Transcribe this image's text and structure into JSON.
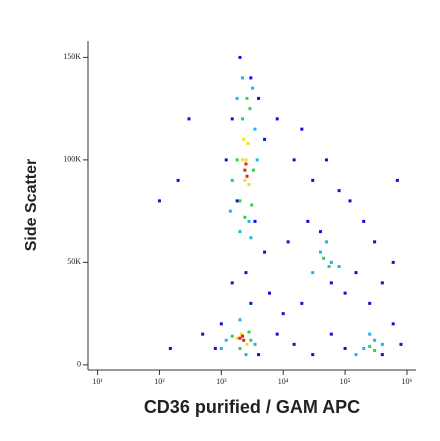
{
  "chart_data": {
    "type": "scatter",
    "x_label": "CD36 purified / GAM APC",
    "y_label": "Side Scatter",
    "x_scale": "log",
    "xlim": [
      7,
      1400000
    ],
    "xticks": [
      {
        "value": 10,
        "label": "10¹"
      },
      {
        "value": 100,
        "label": "10²"
      },
      {
        "value": 1000,
        "label": "10³"
      },
      {
        "value": 10000,
        "label": "10⁴"
      },
      {
        "value": 100000,
        "label": "10⁵"
      },
      {
        "value": 1000000,
        "label": "10⁶"
      }
    ],
    "ylim": [
      -2500,
      158000
    ],
    "yticks": [
      0,
      {
        "value": 50000,
        "label": "50K"
      },
      {
        "value": 100000,
        "label": "100K"
      },
      {
        "value": 150000,
        "label": "150K"
      }
    ],
    "series": [
      {
        "color": "#1010d8",
        "x": [
          2000,
          3000,
          1500,
          4000,
          1800,
          3500,
          1200,
          5000,
          8000,
          15000,
          20000,
          30000,
          50000,
          80000,
          120000,
          200000,
          300000,
          25000,
          40000,
          60000,
          100000,
          150000,
          250000,
          20000,
          10000,
          6000,
          3000,
          1500,
          500,
          800,
          1000,
          4000,
          8000,
          15000,
          30000,
          60000,
          100000,
          400000,
          600000,
          800000,
          600000,
          400000,
          150,
          300,
          200,
          100,
          2500,
          700000,
          12000,
          5000
        ],
        "values": [
          150000,
          140000,
          120000,
          130000,
          80000,
          70000,
          100000,
          110000,
          120000,
          100000,
          115000,
          90000,
          100000,
          85000,
          80000,
          70000,
          60000,
          70000,
          65000,
          40000,
          35000,
          45000,
          30000,
          30000,
          25000,
          35000,
          30000,
          40000,
          15000,
          8000,
          20000,
          5000,
          15000,
          10000,
          5000,
          15000,
          8000,
          5000,
          20000,
          10000,
          50000,
          40000,
          8000,
          120000,
          90000,
          80000,
          45000,
          90000,
          60000,
          55000
        ]
      },
      {
        "color": "#18b8e8",
        "x": [
          1800,
          3200,
          2000,
          3000,
          1500,
          3800,
          1400,
          3500,
          2200,
          2800,
          1200,
          3500,
          2000,
          2500,
          1000,
          40000,
          60000,
          30000,
          80000,
          50000,
          200000,
          300000,
          150000,
          400000,
          250000
        ],
        "values": [
          130000,
          135000,
          65000,
          62000,
          90000,
          100000,
          75000,
          115000,
          140000,
          70000,
          12000,
          10000,
          22000,
          5000,
          8000,
          55000,
          50000,
          45000,
          48000,
          60000,
          8000,
          12000,
          5000,
          10000,
          15000
        ]
      },
      {
        "color": "#30d050",
        "x": [
          2200,
          2900,
          2000,
          3100,
          1800,
          3300,
          2400,
          2600,
          1500,
          2800,
          2000,
          3000,
          250000,
          300000,
          45000,
          55000
        ],
        "values": [
          120000,
          125000,
          80000,
          78000,
          100000,
          95000,
          72000,
          130000,
          14000,
          16000,
          8000,
          12000,
          9000,
          7000,
          52000,
          48000
        ]
      },
      {
        "color": "#f0e020",
        "x": [
          2300,
          2700,
          2400,
          2800,
          2500,
          2200,
          1800,
          2600,
          2100
        ],
        "values": [
          110000,
          108000,
          90000,
          88000,
          100000,
          100000,
          13000,
          10000,
          15000
        ]
      },
      {
        "color": "#e82010",
        "x": [
          2500,
          2400,
          2600,
          2000,
          2300,
          2200
        ],
        "values": [
          98000,
          95000,
          92000,
          13000,
          12000,
          14000
        ]
      }
    ]
  }
}
